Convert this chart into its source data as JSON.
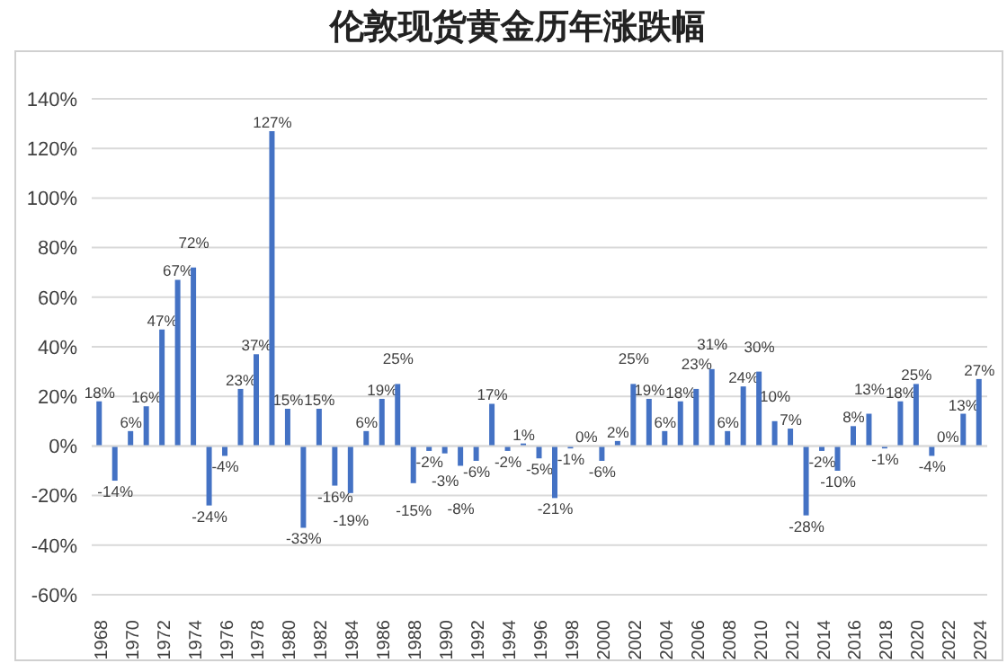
{
  "chart_data": {
    "type": "bar",
    "title": "伦敦现货黄金历年涨跌幅",
    "categories": [
      "1968",
      null,
      "1970",
      null,
      "1972",
      null,
      "1974",
      null,
      "1976",
      null,
      "1978",
      null,
      "1980",
      null,
      "1982",
      null,
      "1984",
      null,
      "1986",
      null,
      "1988",
      null,
      "1990",
      null,
      "1992",
      null,
      "1994",
      null,
      "1996",
      null,
      "1998",
      null,
      "2000",
      null,
      "2002",
      null,
      "2004",
      null,
      "2006",
      null,
      "2008",
      null,
      "2010",
      null,
      "2012",
      null,
      "2014",
      null,
      "2016",
      null,
      "2018",
      null,
      "2020",
      null,
      "2022",
      null,
      "2024"
    ],
    "values": [
      18,
      -14,
      6,
      16,
      47,
      67,
      72,
      -24,
      -4,
      23,
      37,
      127,
      15,
      -33,
      15,
      -16,
      -19,
      6,
      19,
      25,
      -15,
      -2,
      -3,
      -8,
      -6,
      17,
      -2,
      1,
      -5,
      -21,
      -1,
      0,
      -6,
      2,
      25,
      19,
      6,
      18,
      23,
      31,
      6,
      24,
      30,
      10,
      7,
      -28,
      -2,
      -10,
      8,
      13,
      -1,
      18,
      25,
      -4,
      0,
      13,
      27
    ],
    "color": "#4472c4",
    "ylim": [
      -60,
      140
    ],
    "yticks": [
      {
        "value": -60,
        "label": "-60%"
      },
      {
        "value": -40,
        "label": "-40%"
      },
      {
        "value": -20,
        "label": "-20%"
      },
      {
        "value": 0,
        "label": "0%"
      },
      {
        "value": 20,
        "label": "20%"
      },
      {
        "value": 40,
        "label": "40%"
      },
      {
        "value": 60,
        "label": "60%"
      },
      {
        "value": 80,
        "label": "80%"
      },
      {
        "value": 100,
        "label": "100%"
      },
      {
        "value": 120,
        "label": "120%"
      },
      {
        "value": 140,
        "label": "140%"
      }
    ],
    "value_labels": [
      "18%",
      "-14%",
      "6%",
      "16%",
      "47%",
      "67%",
      "72%",
      "-24%",
      "-4%",
      "23%",
      "37%",
      "127%",
      "15%",
      "-33%",
      "15%",
      "-16%",
      "-19%",
      "6%",
      "19%",
      "25%",
      "-15%",
      "-2%",
      "-3%",
      "-8%",
      "-6%",
      "17%",
      "-2%",
      "1%",
      "-5%",
      "-21%",
      "-1%",
      "0%",
      "-6%",
      "2%",
      "25%",
      "19%",
      "6%",
      "18%",
      "23%",
      "31%",
      "6%",
      "24%",
      "30%",
      "10%",
      "7%",
      "-28%",
      "-2%",
      "-10%",
      "8%",
      "13%",
      "-1%",
      "18%",
      "25%",
      "-4%",
      "0%",
      "13%",
      "27%"
    ],
    "grid": "y"
  }
}
